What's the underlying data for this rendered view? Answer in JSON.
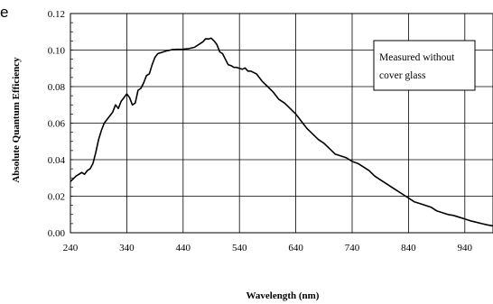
{
  "page_fragment": "e",
  "chart_data": {
    "type": "line",
    "title": "",
    "xlabel": "Wavelength (nm)",
    "ylabel": "Absolute Quantum Efficiency",
    "xlim": [
      240,
      990
    ],
    "ylim": [
      0,
      0.12
    ],
    "x_ticks": [
      240,
      340,
      440,
      540,
      640,
      740,
      840,
      940
    ],
    "x_tick_labels": [
      "240",
      "340",
      "440",
      "540",
      "640",
      "740",
      "840",
      "940"
    ],
    "y_ticks": [
      0,
      0.02,
      0.04,
      0.06,
      0.08,
      0.1,
      0.12
    ],
    "y_tick_labels": [
      "0.00",
      "0.02",
      "0.04",
      "0.06",
      "0.08",
      "0.10",
      "0.12"
    ],
    "grid": true,
    "annotation": {
      "lines": [
        "Measured without",
        "cover glass"
      ],
      "position": "top-right"
    },
    "series": [
      {
        "color": "#000000",
        "x": [
          240,
          250,
          255,
          260,
          265,
          270,
          275,
          280,
          285,
          290,
          295,
          300,
          305,
          310,
          315,
          320,
          325,
          330,
          335,
          340,
          345,
          350,
          355,
          360,
          365,
          370,
          375,
          380,
          385,
          390,
          395,
          400,
          410,
          420,
          430,
          440,
          450,
          460,
          470,
          475,
          480,
          485,
          490,
          495,
          500,
          505,
          510,
          515,
          520,
          525,
          530,
          535,
          540,
          545,
          550,
          555,
          560,
          570,
          580,
          590,
          600,
          610,
          620,
          630,
          640,
          650,
          660,
          670,
          680,
          690,
          700,
          710,
          720,
          730,
          740,
          750,
          760,
          770,
          780,
          790,
          800,
          810,
          820,
          830,
          840,
          850,
          860,
          870,
          880,
          890,
          900,
          910,
          920,
          930,
          940,
          950,
          960,
          970,
          980,
          990
        ],
        "y": [
          0.028,
          0.031,
          0.032,
          0.033,
          0.032,
          0.034,
          0.035,
          0.038,
          0.044,
          0.051,
          0.056,
          0.06,
          0.062,
          0.064,
          0.066,
          0.07,
          0.068,
          0.072,
          0.074,
          0.076,
          0.074,
          0.07,
          0.071,
          0.078,
          0.079,
          0.082,
          0.086,
          0.087,
          0.092,
          0.096,
          0.098,
          0.0985,
          0.0995,
          0.1002,
          0.1004,
          0.1005,
          0.1008,
          0.1015,
          0.1035,
          0.1045,
          0.1062,
          0.106,
          0.1065,
          0.105,
          0.103,
          0.099,
          0.098,
          0.095,
          0.092,
          0.0915,
          0.0905,
          0.0905,
          0.09,
          0.0895,
          0.0902,
          0.0885,
          0.0885,
          0.087,
          0.083,
          0.08,
          0.077,
          0.073,
          0.071,
          0.068,
          0.065,
          0.061,
          0.057,
          0.054,
          0.051,
          0.049,
          0.046,
          0.043,
          0.042,
          0.041,
          0.039,
          0.038,
          0.036,
          0.034,
          0.031,
          0.029,
          0.027,
          0.025,
          0.023,
          0.021,
          0.019,
          0.017,
          0.016,
          0.015,
          0.014,
          0.012,
          0.011,
          0.01,
          0.0095,
          0.0085,
          0.0075,
          0.0065,
          0.0058,
          0.005,
          0.0043,
          0.0037
        ]
      }
    ]
  }
}
